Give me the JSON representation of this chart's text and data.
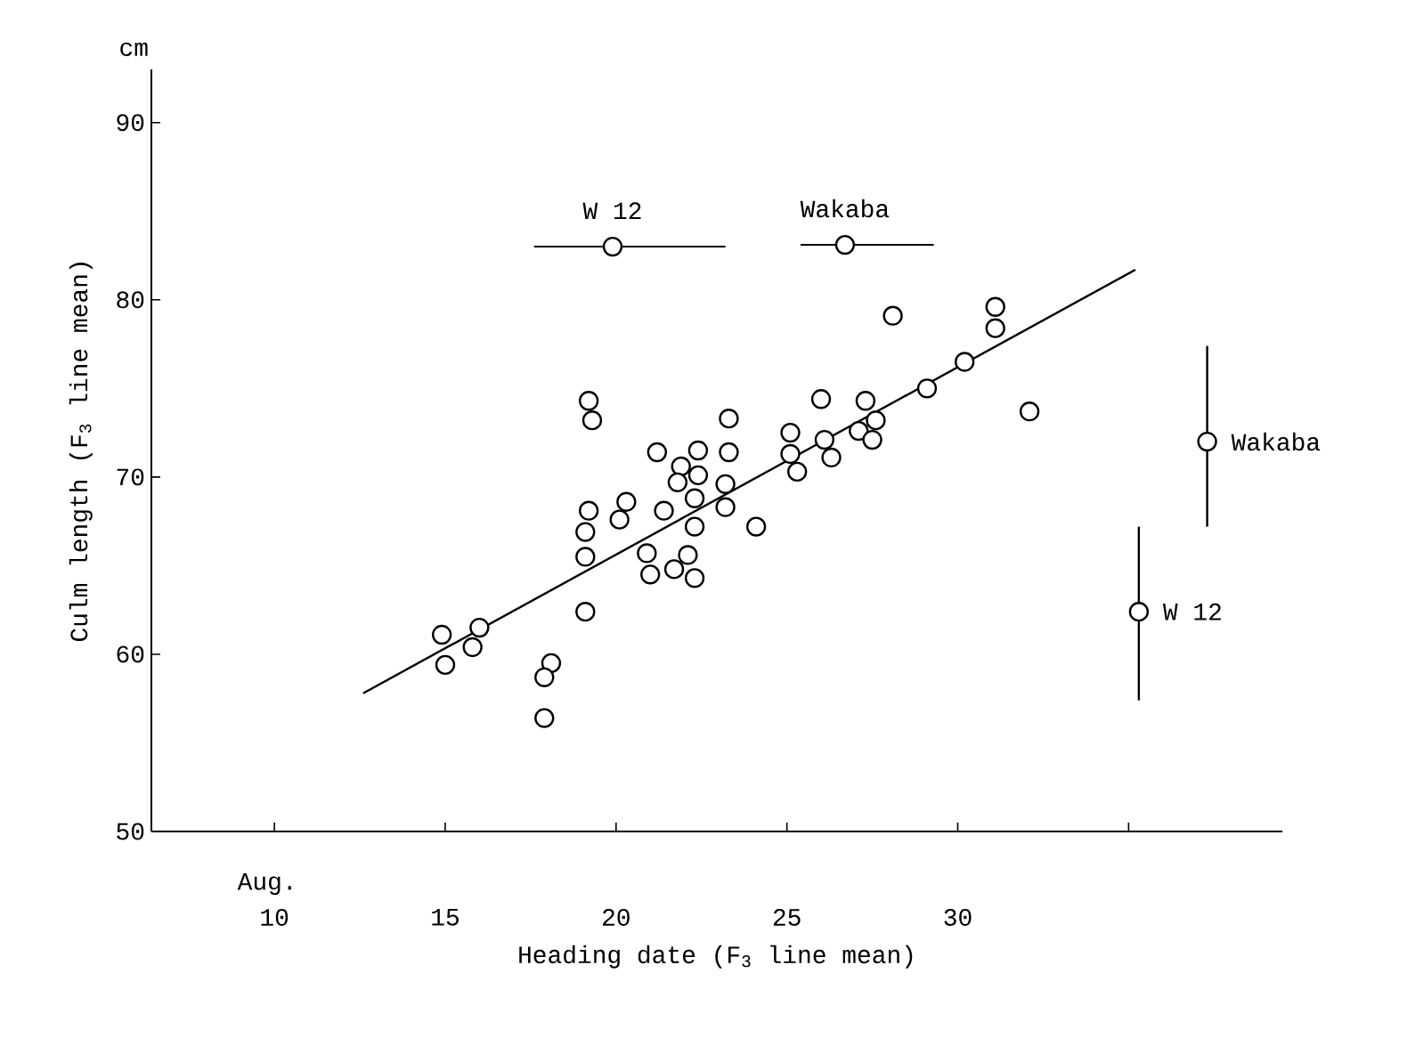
{
  "chart_data": {
    "type": "scatter",
    "xlabel": "Heading date (F$_{3}$ line mean)",
    "ylabel": "Culm length (F$_{3}$ line mean)",
    "xlim": [
      6.4,
      39.5
    ],
    "ylim": [
      50,
      93
    ],
    "xticks": [
      10,
      15,
      20,
      25,
      30,
      {
        "value": 35,
        "label": null
      }
    ],
    "yticks": [
      50,
      60,
      70,
      80,
      90
    ],
    "marker": "circle",
    "annotations": [
      "cm",
      "Aug.",
      {
        "text": "W 12",
        "x": 19.9,
        "y": 83.0
      },
      {
        "text": "Wakaba",
        "x": 26.7,
        "y": 83.1
      },
      {
        "text": "Wakaba",
        "x": 37.3,
        "y": 72.0
      },
      {
        "text": "W 12",
        "x": 35.3,
        "y": 62.4
      }
    ],
    "series": [
      {
        "type": "line",
        "color": "#000000",
        "marker": "none",
        "x": [
          12.6,
          35.2
        ],
        "values": [
          57.8,
          81.7
        ]
      },
      {
        "color": "#000000",
        "x": [
          14.9,
          15.0,
          16.0,
          15.8,
          19.1,
          18.1,
          17.9,
          17.9,
          28.1,
          29.1,
          19.2,
          19.3,
          23.3,
          26.0,
          27.3,
          27.6,
          27.1,
          27.5,
          25.1,
          25.1,
          25.3,
          26.1,
          26.3,
          21.2,
          22.4,
          21.9,
          22.4,
          21.8,
          23.3,
          23.2,
          23.2,
          22.3,
          22.3,
          21.4,
          20.3,
          20.1,
          19.2,
          19.1,
          19.1,
          24.1,
          20.9,
          21.0,
          22.1,
          21.7,
          22.3,
          31.1,
          31.1,
          30.2,
          32.1
        ],
        "values": [
          61.1,
          59.4,
          61.5,
          60.4,
          62.4,
          59.5,
          58.7,
          56.4,
          79.1,
          75.0,
          74.3,
          73.2,
          73.3,
          74.4,
          74.3,
          73.2,
          72.6,
          72.1,
          72.5,
          71.3,
          70.3,
          72.1,
          71.1,
          71.4,
          71.5,
          70.6,
          70.1,
          69.7,
          71.4,
          69.6,
          68.3,
          68.8,
          67.2,
          68.1,
          68.6,
          67.6,
          68.1,
          66.9,
          65.5,
          67.2,
          65.7,
          64.5,
          65.6,
          64.8,
          64.3,
          79.6,
          78.4,
          76.5,
          73.7
        ]
      },
      {
        "color": "#000000",
        "x": [
          19.9,
          26.7,
          37.3,
          35.3
        ],
        "values": [
          83.0,
          83.1,
          72.0,
          62.4
        ],
        "xerrors": [
          [
            17.6,
            23.2
          ],
          [
            25.4,
            29.3
          ],
          null,
          null
        ],
        "errors": [
          null,
          null,
          [
            67.2,
            77.4
          ],
          [
            57.4,
            67.2
          ]
        ]
      }
    ]
  }
}
